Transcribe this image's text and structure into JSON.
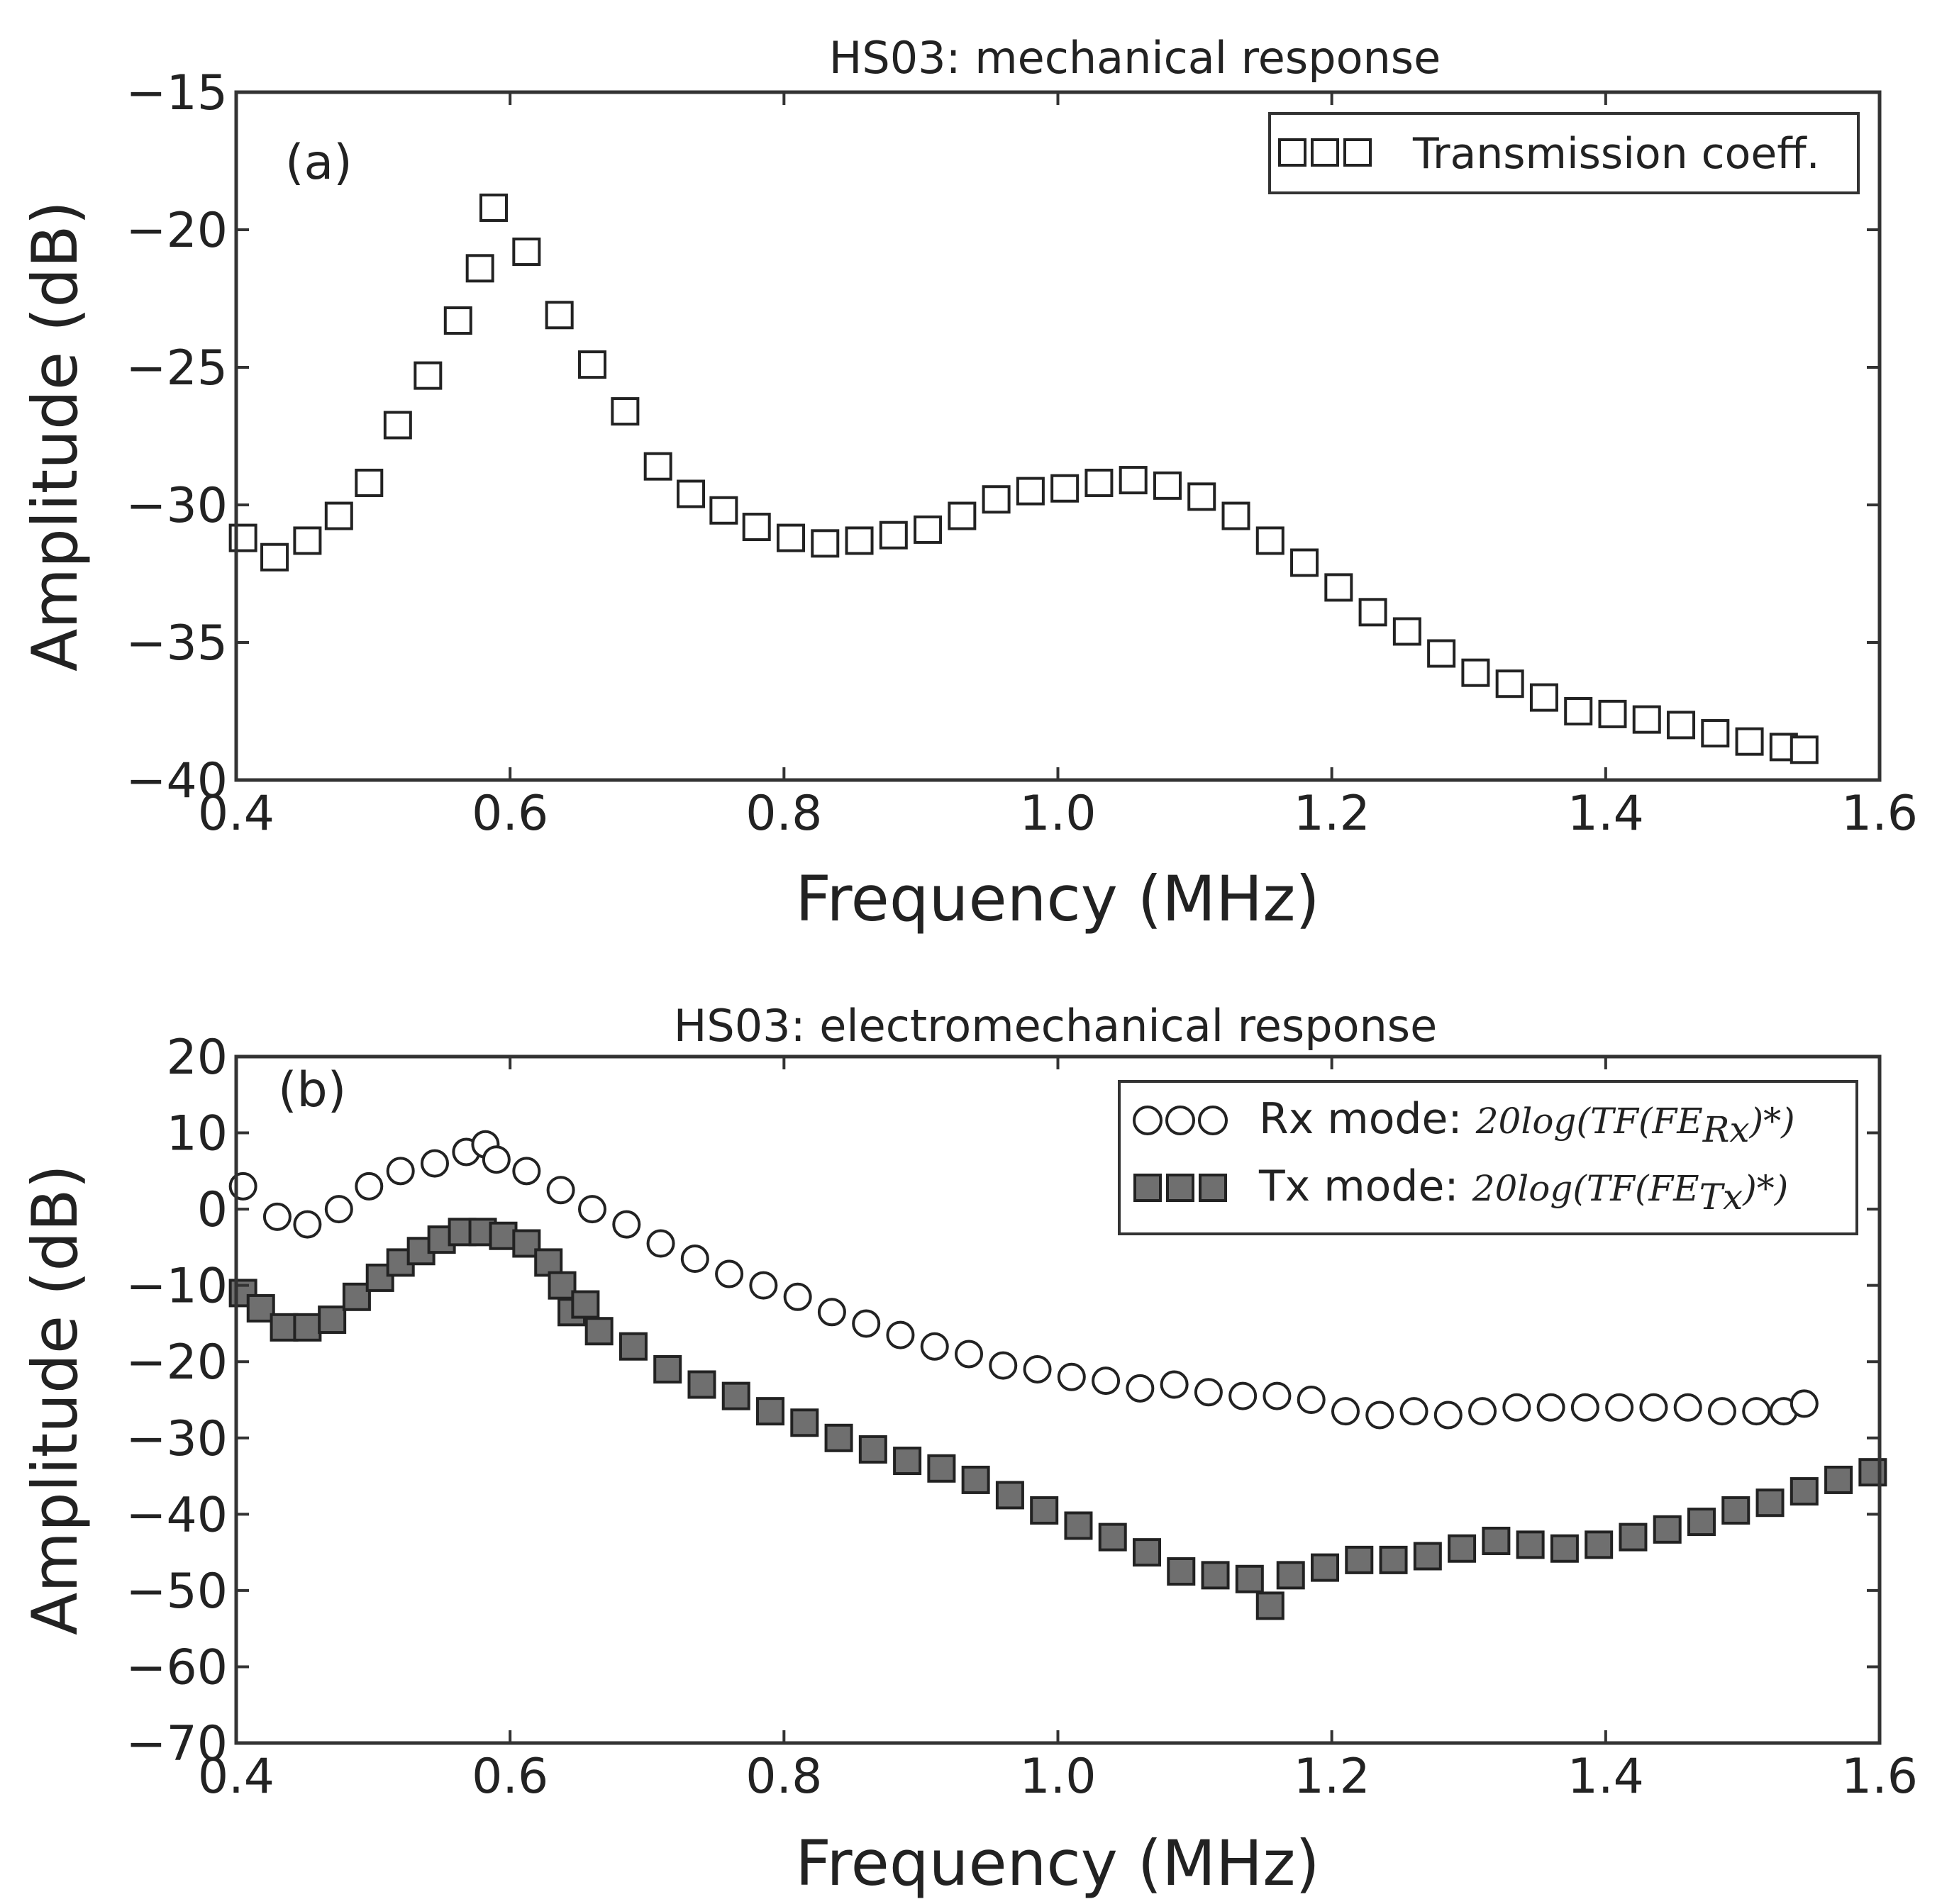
{
  "chart_data": [
    {
      "type": "scatter",
      "title": "HS03: mechanical response",
      "panel_label": "(a)",
      "xlabel": "Frequency (MHz)",
      "ylabel": "Amplitude (dB)",
      "xlim": [
        0.4,
        1.6
      ],
      "ylim": [
        -40,
        -15
      ],
      "xticks": [
        0.4,
        0.6,
        0.8,
        1.0,
        1.2,
        1.4,
        1.6
      ],
      "xtick_labels": [
        "0.4",
        "0.6",
        "0.8",
        "1.0",
        "1.2",
        "1.4",
        "1.6"
      ],
      "yticks": [
        -40,
        -35,
        -30,
        -25,
        -20,
        -15
      ],
      "ytick_labels": [
        "−40",
        "−35",
        "−30",
        "−25",
        "−20",
        "−15"
      ],
      "legend_position": "top-right",
      "series": [
        {
          "name": "Transmission coeff.",
          "marker": "square",
          "fill": "#ffffff",
          "edge": "#222222",
          "x": [
            0.405,
            0.428,
            0.452,
            0.475,
            0.497,
            0.518,
            0.54,
            0.562,
            0.578,
            0.588,
            0.612,
            0.636,
            0.66,
            0.684,
            0.708,
            0.732,
            0.756,
            0.78,
            0.805,
            0.83,
            0.855,
            0.88,
            0.905,
            0.93,
            0.955,
            0.98,
            1.005,
            1.03,
            1.055,
            1.08,
            1.105,
            1.13,
            1.155,
            1.18,
            1.205,
            1.23,
            1.255,
            1.28,
            1.305,
            1.33,
            1.355,
            1.38,
            1.405,
            1.43,
            1.455,
            1.48,
            1.505,
            1.53,
            1.545
          ],
          "y": [
            -31.2,
            -31.9,
            -31.3,
            -30.4,
            -29.2,
            -27.1,
            -25.3,
            -23.3,
            -21.4,
            -19.2,
            -20.8,
            -23.1,
            -24.9,
            -26.6,
            -28.6,
            -29.6,
            -30.2,
            -30.8,
            -31.2,
            -31.4,
            -31.3,
            -31.1,
            -30.9,
            -30.4,
            -29.8,
            -29.5,
            -29.4,
            -29.2,
            -29.1,
            -29.3,
            -29.7,
            -30.4,
            -31.3,
            -32.1,
            -33.0,
            -33.9,
            -34.6,
            -35.4,
            -36.1,
            -36.5,
            -37.0,
            -37.5,
            -37.6,
            -37.8,
            -38.0,
            -38.3,
            -38.6,
            -38.8,
            -38.9
          ]
        }
      ]
    },
    {
      "type": "scatter",
      "title": "HS03: electromechanical response",
      "panel_label": "(b)",
      "xlabel": "Frequency (MHz)",
      "ylabel": "Amplitude (dB)",
      "xlim": [
        0.4,
        1.6
      ],
      "ylim": [
        -70,
        20
      ],
      "xticks": [
        0.4,
        0.6,
        0.8,
        1.0,
        1.2,
        1.4,
        1.6
      ],
      "xtick_labels": [
        "0.4",
        "0.6",
        "0.8",
        "1.0",
        "1.2",
        "1.4",
        "1.6"
      ],
      "yticks": [
        -70,
        -60,
        -50,
        -40,
        -30,
        -20,
        -10,
        0,
        10,
        20
      ],
      "ytick_labels": [
        "−70",
        "−60",
        "−50",
        "−40",
        "−30",
        "−20",
        "−10",
        "0",
        "10",
        "20"
      ],
      "legend_position": "top-right",
      "series": [
        {
          "name": "Rx mode: ",
          "name_math": "20log(TF(FE",
          "name_math_sub": "Rx",
          "name_math_tail": ")*)",
          "marker": "circle",
          "fill": "#ffffff",
          "edge": "#222222",
          "x": [
            0.405,
            0.43,
            0.452,
            0.475,
            0.497,
            0.52,
            0.545,
            0.568,
            0.582,
            0.59,
            0.612,
            0.637,
            0.66,
            0.685,
            0.71,
            0.735,
            0.76,
            0.785,
            0.81,
            0.835,
            0.86,
            0.885,
            0.91,
            0.935,
            0.96,
            0.985,
            1.01,
            1.035,
            1.06,
            1.085,
            1.11,
            1.135,
            1.16,
            1.185,
            1.21,
            1.235,
            1.26,
            1.285,
            1.31,
            1.335,
            1.36,
            1.385,
            1.41,
            1.435,
            1.46,
            1.485,
            1.51,
            1.53,
            1.545
          ],
          "y": [
            3.0,
            -1.0,
            -2.0,
            0.0,
            3.0,
            5.0,
            6.0,
            7.5,
            8.5,
            6.5,
            5.0,
            2.5,
            0.0,
            -2.0,
            -4.5,
            -6.5,
            -8.5,
            -10.0,
            -11.5,
            -13.5,
            -15.0,
            -16.5,
            -18.0,
            -19.0,
            -20.5,
            -21.0,
            -22.0,
            -22.5,
            -23.5,
            -23.0,
            -24.0,
            -24.5,
            -24.5,
            -25.0,
            -26.5,
            -27.0,
            -26.5,
            -27.0,
            -26.5,
            -26.0,
            -26.0,
            -26.0,
            -26.0,
            -26.0,
            -26.0,
            -26.5,
            -26.5,
            -26.5,
            -25.5
          ]
        },
        {
          "name": "Tx mode: ",
          "name_math": "20log(TF(FE",
          "name_math_sub": "Tx",
          "name_math_tail": ")*)",
          "marker": "square",
          "fill": "#6f6f6f",
          "edge": "#222222",
          "x": [
            0.405,
            0.418,
            0.435,
            0.452,
            0.47,
            0.488,
            0.505,
            0.52,
            0.535,
            0.55,
            0.565,
            0.58,
            0.595,
            0.612,
            0.628,
            0.638,
            0.645,
            0.655,
            0.665,
            0.69,
            0.715,
            0.74,
            0.765,
            0.79,
            0.815,
            0.84,
            0.865,
            0.89,
            0.915,
            0.94,
            0.965,
            0.99,
            1.015,
            1.04,
            1.065,
            1.09,
            1.115,
            1.14,
            1.155,
            1.17,
            1.195,
            1.22,
            1.245,
            1.27,
            1.295,
            1.32,
            1.345,
            1.37,
            1.395,
            1.42,
            1.445,
            1.47,
            1.495,
            1.52,
            1.545,
            1.57,
            1.595
          ],
          "y": [
            -11.0,
            -13.0,
            -15.5,
            -15.5,
            -14.5,
            -11.5,
            -9.0,
            -7.0,
            -5.5,
            -4.0,
            -3.0,
            -3.0,
            -3.5,
            -4.5,
            -7.0,
            -10.0,
            -13.5,
            -12.5,
            -16.0,
            -18.0,
            -21.0,
            -23.0,
            -24.5,
            -26.5,
            -28.0,
            -30.0,
            -31.5,
            -33.0,
            -34.0,
            -35.5,
            -37.5,
            -39.5,
            -41.5,
            -43.0,
            -45.0,
            -47.5,
            -48.0,
            -48.5,
            -52.0,
            -48.0,
            -47.0,
            -46.0,
            -46.0,
            -45.5,
            -44.5,
            -43.5,
            -44.0,
            -44.5,
            -44.0,
            -43.0,
            -42.0,
            -41.0,
            -39.5,
            -38.5,
            -37.0,
            -35.5,
            -34.5
          ]
        }
      ]
    }
  ]
}
